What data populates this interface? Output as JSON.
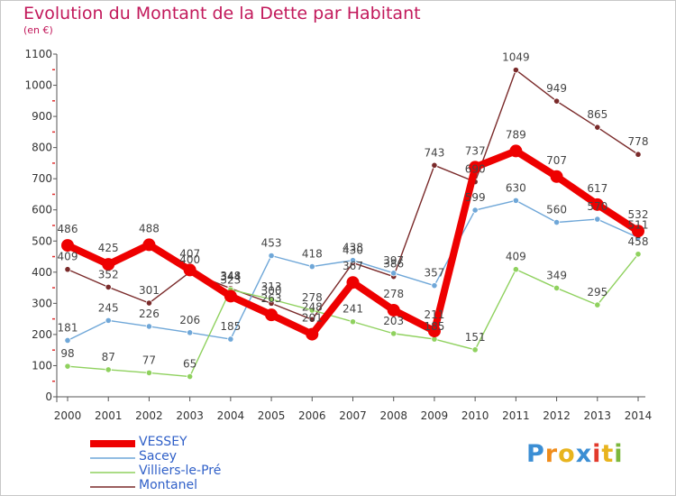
{
  "header": {
    "title": "Evolution du Montant de la Dette par Habitant",
    "subtitle": "(en €)"
  },
  "logo": {
    "letters": [
      "P",
      "r",
      "o",
      "x",
      "i",
      "t",
      "i"
    ],
    "colors": [
      "#3b8ed4",
      "#f08c1a",
      "#e8b41e",
      "#3b8ed4",
      "#e23a2c",
      "#e8b41e",
      "#7cb83c"
    ]
  },
  "chart_data": {
    "type": "line",
    "title": "Evolution du Montant de la Dette par Habitant",
    "subtitle": "(en €)",
    "xlabel": "",
    "ylabel": "",
    "x": [
      "2000",
      "2001",
      "2002",
      "2003",
      "2004",
      "2005",
      "2006",
      "2007",
      "2008",
      "2009",
      "2010",
      "2011",
      "2012",
      "2013",
      "2014"
    ],
    "ylim": [
      0,
      1100
    ],
    "yticks": [
      0,
      100,
      200,
      300,
      400,
      500,
      600,
      700,
      800,
      900,
      1000,
      1100
    ],
    "grid": false,
    "legend_position": "bottom-left",
    "series": [
      {
        "name": "VESSEY",
        "color": "#ee0000",
        "values": [
          486,
          425,
          488,
          407,
          323,
          263,
          201,
          367,
          278,
          211,
          737,
          789,
          707,
          617,
          532
        ]
      },
      {
        "name": "Sacey",
        "color": "#6fa7d8",
        "values": [
          181,
          245,
          226,
          206,
          185,
          453,
          418,
          438,
          397,
          357,
          599,
          630,
          560,
          570,
          511
        ]
      },
      {
        "name": "Villiers-le-Pré",
        "color": "#8fd15e",
        "values": [
          98,
          87,
          77,
          65,
          344,
          313,
          278,
          241,
          203,
          185,
          151,
          409,
          349,
          295,
          458
        ]
      },
      {
        "name": "Montanel",
        "color": "#7a2a2a",
        "values": [
          409,
          352,
          301,
          400,
          348,
          300,
          248,
          430,
          386,
          743,
          690,
          1049,
          949,
          865,
          778
        ]
      }
    ],
    "data_labels": [
      [
        "486",
        "425",
        "488",
        "407",
        "323",
        "263",
        "201",
        "367",
        "278",
        "211",
        "737",
        "789",
        "707",
        "617",
        "532"
      ],
      [
        "181",
        "245",
        "226",
        "206",
        "185",
        "453",
        "418",
        "438",
        "397",
        "357",
        "599",
        "630",
        "560",
        "570",
        "511"
      ],
      [
        "98",
        "87",
        "77",
        "65",
        "344",
        "313",
        "278",
        "241",
        "203",
        "185",
        "151",
        "409",
        "349",
        "295",
        "458"
      ],
      [
        "409",
        "352",
        "301",
        "400",
        "348",
        "300",
        "248",
        "430",
        "386",
        "743",
        "690",
        "1049",
        "949",
        "865",
        "778"
      ]
    ]
  }
}
